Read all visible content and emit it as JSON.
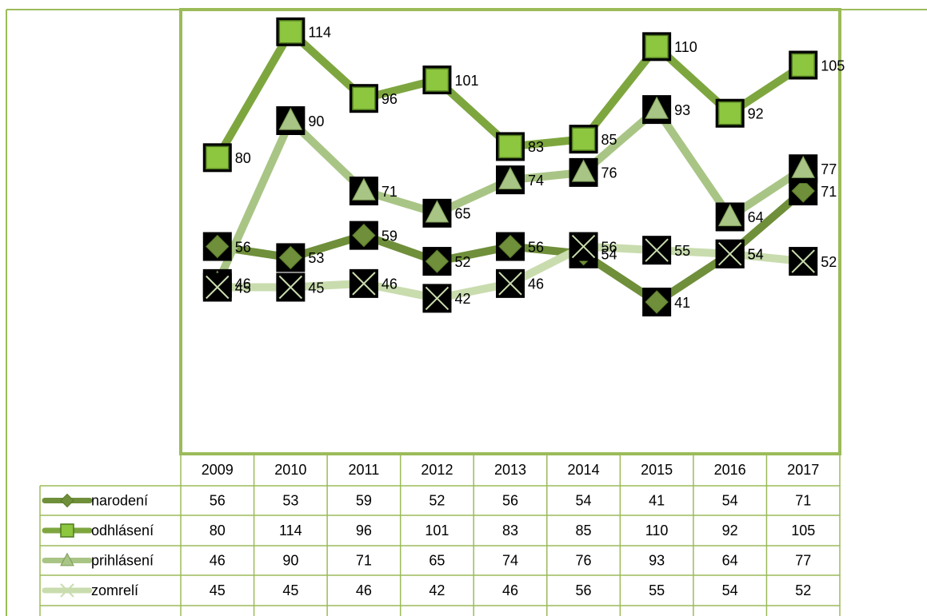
{
  "chart_data": {
    "type": "line",
    "categories": [
      "2009",
      "2010",
      "2011",
      "2012",
      "2013",
      "2014",
      "2015",
      "2016",
      "2017"
    ],
    "series": [
      {
        "name": "narodení",
        "color": "#6f8f3a",
        "marker": "diamond",
        "values": [
          56,
          53,
          59,
          52,
          56,
          54,
          41,
          54,
          71
        ]
      },
      {
        "name": "odhlásení",
        "color": "#7ea63f",
        "marker": "square",
        "values": [
          80,
          114,
          96,
          101,
          83,
          85,
          110,
          92,
          105
        ]
      },
      {
        "name": "prihlásení",
        "color": "#a9c585",
        "marker": "triangle",
        "values": [
          46,
          90,
          71,
          65,
          74,
          76,
          93,
          64,
          77
        ]
      },
      {
        "name": "zomrelí",
        "color": "#c9dcae",
        "marker": "x",
        "values": [
          45,
          45,
          46,
          42,
          46,
          56,
          55,
          54,
          52
        ]
      }
    ],
    "ylim": [
      0,
      120
    ]
  }
}
